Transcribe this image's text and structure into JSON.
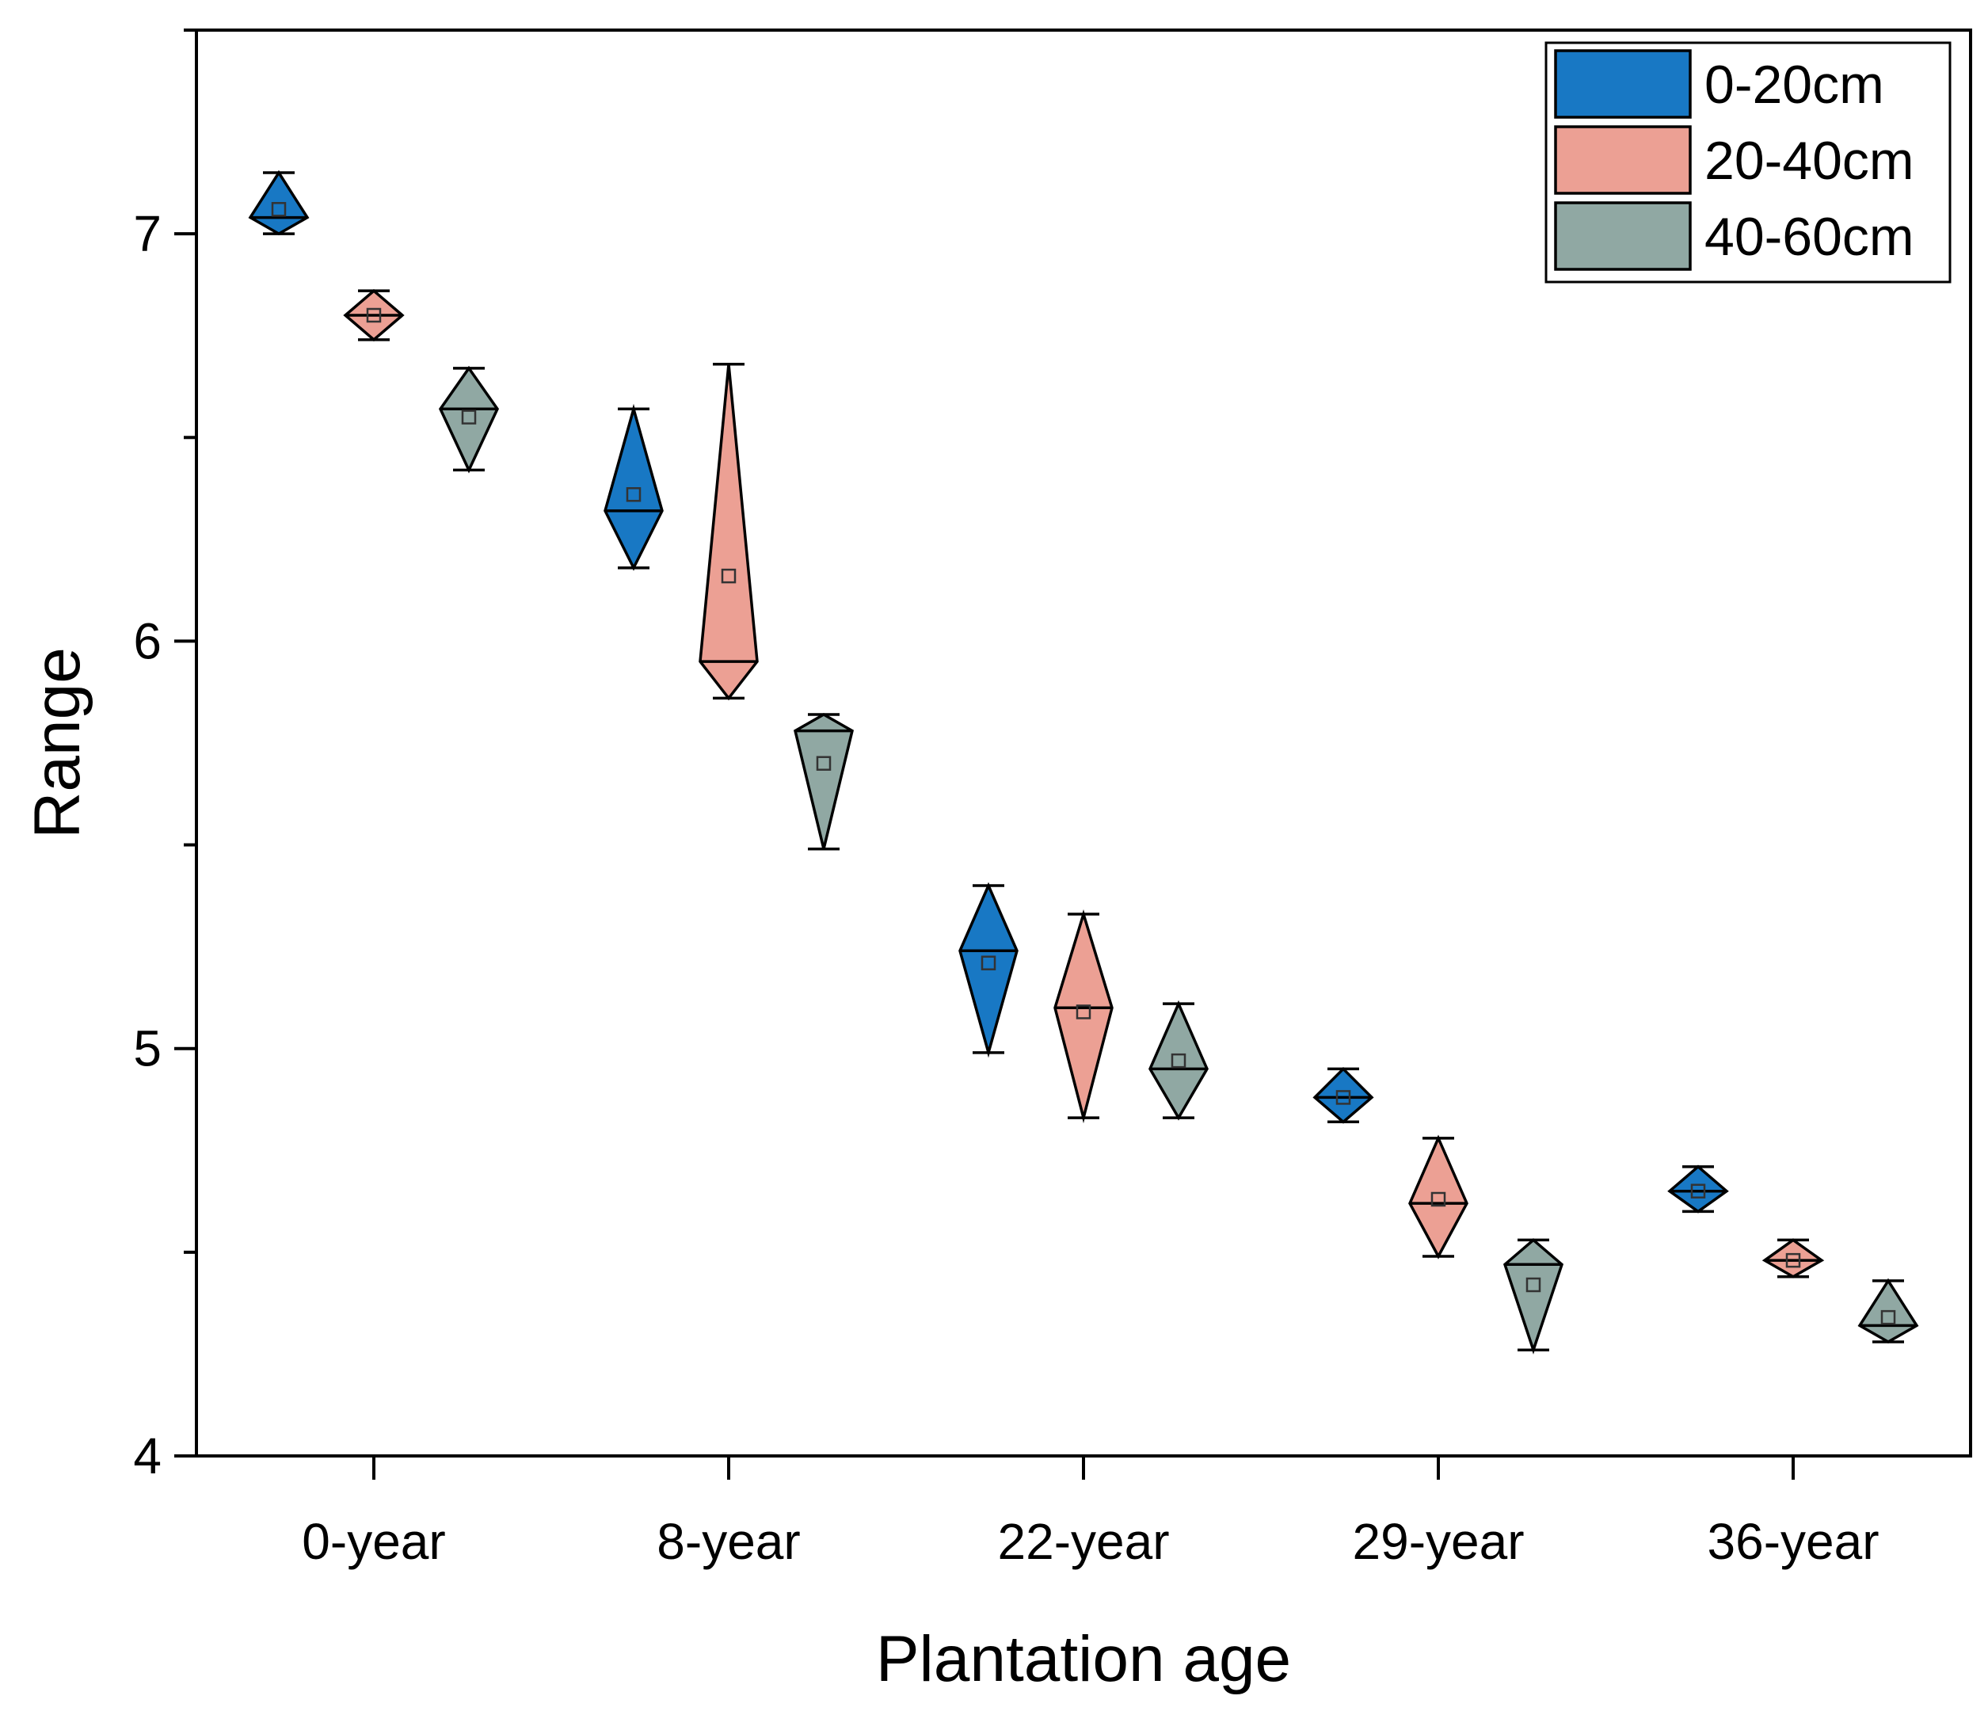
{
  "chart_data": {
    "type": "diamond-range",
    "xlabel": "Plantation age",
    "ylabel": "Range",
    "ylim": [
      4,
      7.5
    ],
    "yticks": [
      4,
      5,
      6,
      7
    ],
    "categories": [
      "0-year",
      "8-year",
      "22-year",
      "29-year",
      "36-year"
    ],
    "legend_position": "top-right",
    "series": [
      {
        "name": "0-20cm",
        "color": "#1878C4",
        "values": [
          {
            "min": 7.0,
            "max": 7.15,
            "median": 7.04,
            "mean": 7.06
          },
          {
            "min": 6.18,
            "max": 6.57,
            "median": 6.32,
            "mean": 6.36
          },
          {
            "min": 4.99,
            "max": 5.4,
            "median": 5.24,
            "mean": 5.21
          },
          {
            "min": 4.82,
            "max": 4.95,
            "median": 4.88,
            "mean": 4.88
          },
          {
            "min": 4.6,
            "max": 4.71,
            "median": 4.65,
            "mean": 4.65
          }
        ]
      },
      {
        "name": "20-40cm",
        "color": "#ECA094",
        "values": [
          {
            "min": 6.74,
            "max": 6.86,
            "median": 6.8,
            "mean": 6.8
          },
          {
            "min": 5.86,
            "max": 6.68,
            "median": 5.95,
            "mean": 6.16
          },
          {
            "min": 4.83,
            "max": 5.33,
            "median": 5.1,
            "mean": 5.09
          },
          {
            "min": 4.49,
            "max": 4.78,
            "median": 4.62,
            "mean": 4.63
          },
          {
            "min": 4.44,
            "max": 4.53,
            "median": 4.48,
            "mean": 4.48
          }
        ]
      },
      {
        "name": "40-60cm",
        "color": "#90A8A3",
        "values": [
          {
            "min": 6.42,
            "max": 6.67,
            "median": 6.57,
            "mean": 6.55
          },
          {
            "min": 5.49,
            "max": 5.82,
            "median": 5.78,
            "mean": 5.7
          },
          {
            "min": 4.83,
            "max": 5.11,
            "median": 4.95,
            "mean": 4.97
          },
          {
            "min": 4.26,
            "max": 4.53,
            "median": 4.47,
            "mean": 4.42
          },
          {
            "min": 4.28,
            "max": 4.43,
            "median": 4.32,
            "mean": 4.34
          }
        ]
      }
    ]
  }
}
